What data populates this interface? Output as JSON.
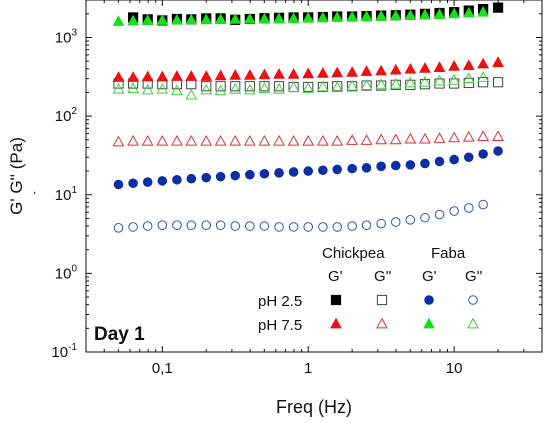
{
  "chart_data": {
    "type": "scatter",
    "xlabel": "Freq (Hz)",
    "ylabel": "G' G'' (Pa)",
    "ylabel_mark": ",",
    "x_scale": "log",
    "y_scale": "log",
    "xlim": [
      0.03,
      40
    ],
    "ylim": [
      0.1,
      3000
    ],
    "x_ticks": [
      {
        "value": 0.1,
        "label": "0,1"
      },
      {
        "value": 1,
        "label": "1"
      },
      {
        "value": 10,
        "label": "10"
      }
    ],
    "y_ticks": [
      {
        "value": 0.1,
        "base": "10",
        "exp": "-1"
      },
      {
        "value": 1,
        "base": "10",
        "exp": "0"
      },
      {
        "value": 10,
        "base": "10",
        "exp": "1"
      },
      {
        "value": 100,
        "base": "10",
        "exp": "2"
      },
      {
        "value": 1000,
        "base": "10",
        "exp": "3"
      }
    ],
    "x": [
      0.0501,
      0.0631,
      0.0794,
      0.1,
      0.126,
      0.158,
      0.2,
      0.251,
      0.316,
      0.398,
      0.501,
      0.631,
      0.794,
      1.0,
      1.26,
      1.58,
      2.0,
      2.51,
      3.16,
      3.98,
      5.01,
      6.31,
      7.94,
      10.0,
      12.6,
      15.8,
      20.0
    ],
    "series": [
      {
        "group": "Chickpea",
        "modulus": "G'",
        "ph": "pH 2.5",
        "marker": "square",
        "filled": true,
        "color": "#000000",
        "values": [
          null,
          1800,
          1700,
          1650,
          1720,
          1700,
          1750,
          1750,
          1680,
          1720,
          1760,
          1780,
          1800,
          1800,
          1820,
          1850,
          1850,
          1870,
          1900,
          1920,
          1950,
          2000,
          2050,
          2100,
          2200,
          2300,
          2400
        ]
      },
      {
        "group": "Chickpea",
        "modulus": "G''",
        "ph": "pH 2.5",
        "marker": "square",
        "filled": false,
        "color": "#444444",
        "values": [
          260,
          260,
          260,
          255,
          255,
          255,
          240,
          240,
          240,
          240,
          240,
          240,
          235,
          235,
          235,
          240,
          240,
          245,
          245,
          250,
          250,
          255,
          260,
          260,
          265,
          270,
          270
        ]
      },
      {
        "group": "Chickpea",
        "modulus": "G'",
        "ph": "pH 7.5",
        "marker": "triangle",
        "filled": true,
        "color": "#ee1111",
        "values": [
          310,
          310,
          315,
          315,
          320,
          320,
          320,
          325,
          330,
          330,
          335,
          340,
          340,
          345,
          350,
          355,
          360,
          370,
          375,
          385,
          395,
          405,
          415,
          430,
          440,
          460,
          480
        ]
      },
      {
        "group": "Chickpea",
        "modulus": "G''",
        "ph": "pH 7.5",
        "marker": "triangle",
        "filled": false,
        "color": "#dd3333",
        "values": [
          47,
          48,
          48,
          48,
          48,
          48,
          48,
          48,
          48,
          48,
          48,
          48,
          48,
          48,
          48,
          48,
          49,
          49,
          50,
          50,
          51,
          51,
          52,
          53,
          54,
          55,
          55
        ]
      },
      {
        "group": "Faba",
        "modulus": "G'",
        "ph": "pH 2.5",
        "marker": "circle",
        "filled": true,
        "color": "#0d2fa6",
        "values": [
          13.5,
          14,
          14.5,
          15,
          15.5,
          16,
          16.5,
          17,
          17.5,
          18,
          18.5,
          19,
          19.5,
          20,
          20.5,
          21,
          21.5,
          22,
          23,
          23.5,
          24,
          25,
          26.5,
          28,
          30,
          33,
          36
        ]
      },
      {
        "group": "Faba",
        "modulus": "G''",
        "ph": "pH 2.5",
        "marker": "circle",
        "filled": false,
        "color": "#3a4fb0",
        "values": [
          3.8,
          3.9,
          4.0,
          4.1,
          4.1,
          4.1,
          4.1,
          4.1,
          4.0,
          4.0,
          4.0,
          3.9,
          3.9,
          3.9,
          3.9,
          3.9,
          4.0,
          4.1,
          4.3,
          4.5,
          4.8,
          5.1,
          5.6,
          6.2,
          6.8,
          7.5,
          null
        ]
      },
      {
        "group": "Faba",
        "modulus": "G'",
        "ph": "pH 7.5",
        "marker": "triangle",
        "filled": true,
        "color": "#19e019",
        "values": [
          1600,
          1620,
          1640,
          1650,
          1660,
          1670,
          1680,
          1690,
          1700,
          1710,
          1720,
          1730,
          1740,
          1760,
          1780,
          1800,
          1820,
          1840,
          1860,
          1880,
          1900,
          1930,
          1960,
          2000,
          2050,
          2100,
          null
        ]
      },
      {
        "group": "Faba",
        "modulus": "G''",
        "ph": "pH 7.5",
        "marker": "triangle",
        "filled": false,
        "color": "#3ccf3c",
        "values": [
          220,
          225,
          215,
          220,
          210,
          185,
          215,
          210,
          220,
          215,
          225,
          220,
          230,
          225,
          235,
          230,
          240,
          245,
          250,
          255,
          265,
          270,
          280,
          285,
          300,
          310,
          null
        ]
      }
    ],
    "legend": {
      "group_labels": [
        "Chickpea",
        "Faba"
      ],
      "modulus_labels": [
        "G'",
        "G''",
        "G'",
        "G''"
      ],
      "rows": [
        "pH 2.5",
        "pH 7.5"
      ]
    },
    "annotation": "Day 1"
  }
}
